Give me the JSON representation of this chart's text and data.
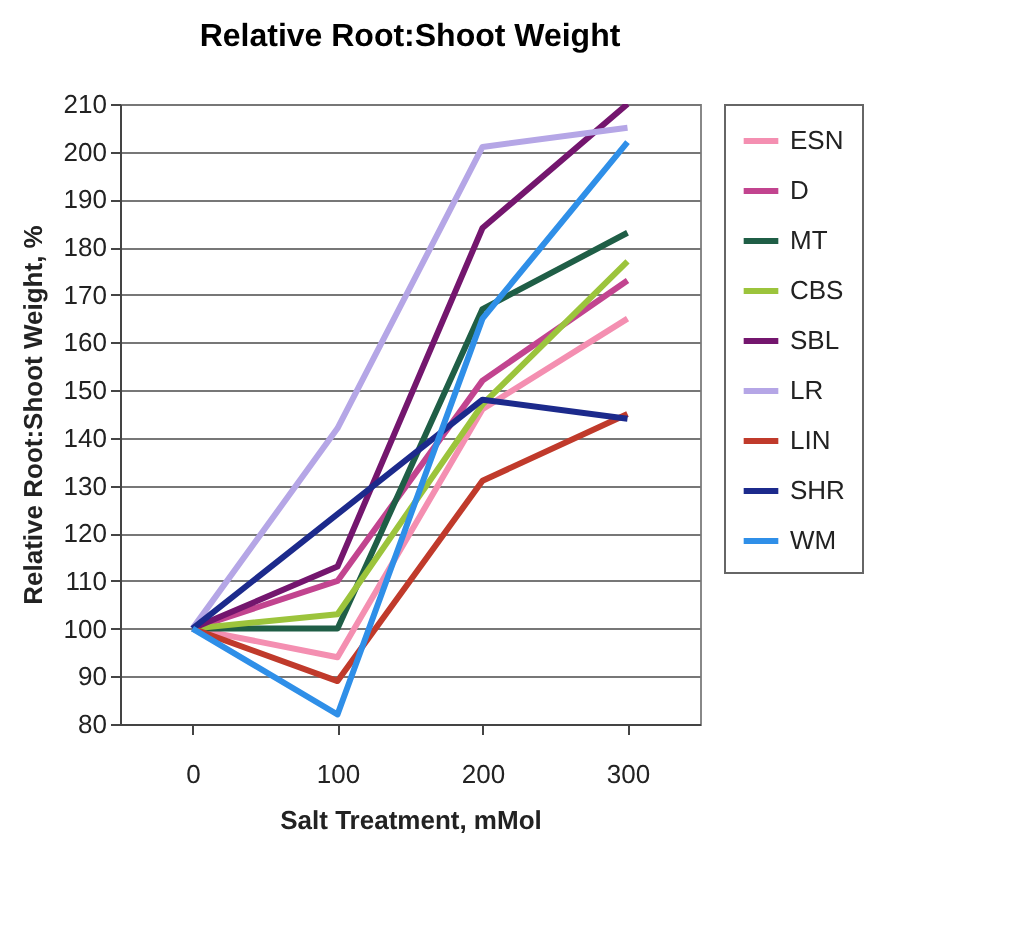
{
  "chart_data": {
    "type": "line",
    "title": "Relative Root:Shoot Weight",
    "xlabel": "Salt Treatment, mMol",
    "ylabel": "Relative Root:Shoot Weight, %",
    "categories": [
      "0",
      "100",
      "200",
      "300"
    ],
    "ylim": [
      80,
      210
    ],
    "yticks": [
      80,
      90,
      100,
      110,
      120,
      130,
      140,
      150,
      160,
      170,
      180,
      190,
      200,
      210
    ],
    "grid": "y",
    "legend": "right",
    "series": [
      {
        "name": "ESN",
        "color": "#f48fb1",
        "values": [
          100,
          94,
          146,
          165
        ]
      },
      {
        "name": "D",
        "color": "#c2448f",
        "values": [
          100,
          110,
          152,
          173
        ]
      },
      {
        "name": "MT",
        "color": "#1f5e46",
        "values": [
          100,
          100,
          167,
          183
        ]
      },
      {
        "name": "CBS",
        "color": "#9cc43c",
        "values": [
          100,
          103,
          147,
          177
        ]
      },
      {
        "name": "SBL",
        "color": "#74166e",
        "values": [
          100,
          113,
          184,
          210
        ]
      },
      {
        "name": "LR",
        "color": "#b5a6e6",
        "values": [
          100,
          142,
          201,
          205
        ]
      },
      {
        "name": "LIN",
        "color": "#c03a2b",
        "values": [
          100,
          89,
          131,
          145
        ]
      },
      {
        "name": "SHR",
        "color": "#1c2a8c",
        "values": [
          100,
          124,
          148,
          144
        ]
      },
      {
        "name": "WM",
        "color": "#2f8fe8",
        "values": [
          100,
          82,
          165,
          202
        ]
      }
    ]
  }
}
